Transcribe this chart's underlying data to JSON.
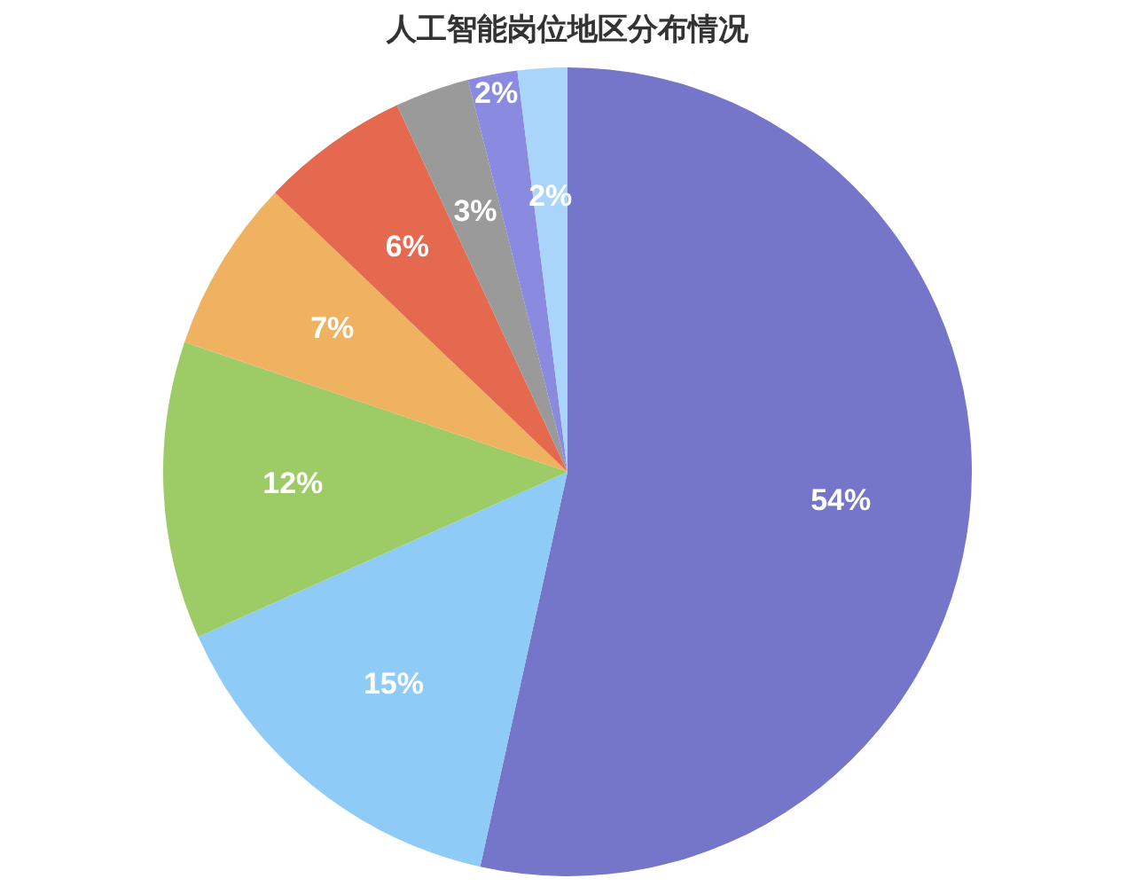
{
  "chart_data": {
    "type": "pie",
    "title": "人工智能岗位地区分布情况",
    "categories": [
      null,
      null,
      null,
      null,
      null,
      null,
      null,
      null
    ],
    "values": [
      54,
      15,
      12,
      7,
      6,
      3,
      2,
      2
    ],
    "colors": [
      "#7575c9",
      "#8ecbf7",
      "#9dcb66",
      "#efb261",
      "#e5694f",
      "#9a9a9a",
      "#8a8ae0",
      "#a9d5fa"
    ],
    "value_labels": [
      "54%",
      "15%",
      "12%",
      "7%",
      "6%",
      "3%",
      "2%",
      "2%"
    ],
    "legend": false
  }
}
